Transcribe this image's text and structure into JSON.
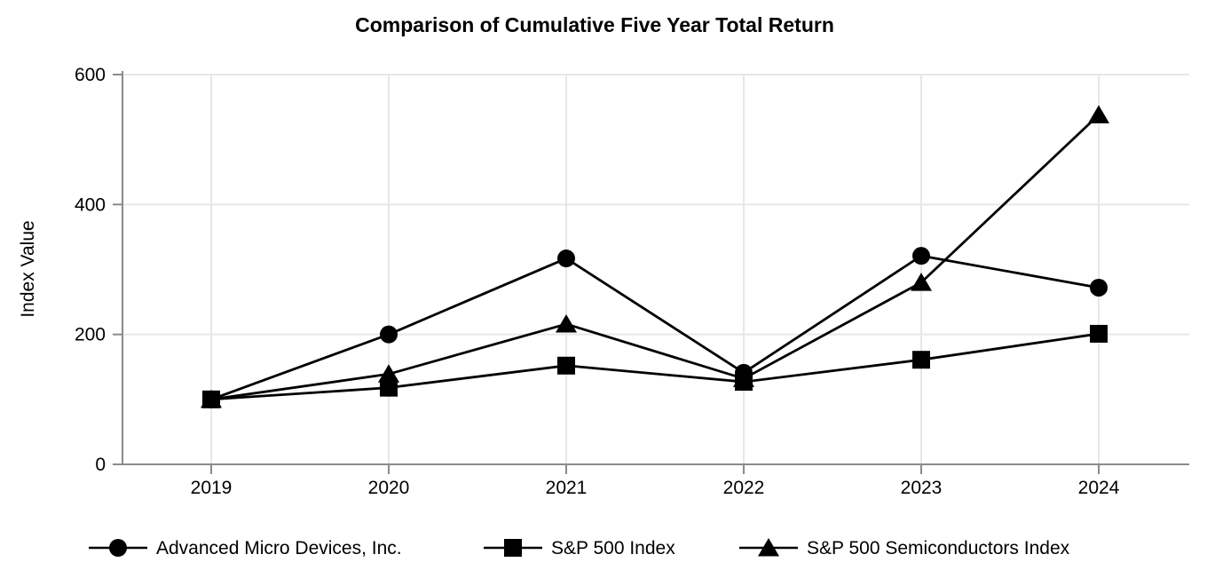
{
  "chart_data": {
    "type": "line",
    "title": "Comparison of Cumulative Five Year Total Return",
    "xlabel": "",
    "ylabel": "Index Value",
    "categories": [
      "2019",
      "2020",
      "2021",
      "2022",
      "2023",
      "2024"
    ],
    "series": [
      {
        "name": "Advanced Micro Devices, Inc.",
        "marker": "circle",
        "values": [
          100,
          200,
          317,
          141,
          321,
          272
        ]
      },
      {
        "name": "S&P 500 Index",
        "marker": "square",
        "values": [
          100,
          118,
          152,
          127,
          161,
          201
        ]
      },
      {
        "name": "S&P 500 Semiconductors Index",
        "marker": "triangle",
        "values": [
          100,
          139,
          216,
          132,
          280,
          538
        ]
      }
    ],
    "ylim": [
      0,
      600
    ],
    "yticks": [
      0,
      200,
      400,
      600
    ],
    "grid": true,
    "legend_position": "bottom",
    "colors": {
      "line": "#000000",
      "marker": "#000000",
      "spine": "#8a8a8a",
      "gridline": "#e7e7e7",
      "text": "#000000",
      "background": "#ffffff"
    }
  }
}
